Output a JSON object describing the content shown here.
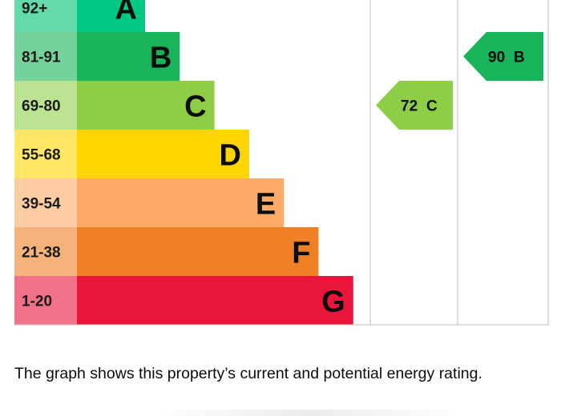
{
  "chart_data": {
    "type": "bar",
    "title": "",
    "xlabel": "",
    "ylabel": "",
    "bands": [
      {
        "range": "92+",
        "letter": "A",
        "band_color": "#00c781",
        "range_color": "#66d9a9"
      },
      {
        "range": "81-91",
        "letter": "B",
        "band_color": "#19b459",
        "range_color": "#75d29b"
      },
      {
        "range": "69-80",
        "letter": "C",
        "band_color": "#8dce46",
        "range_color": "#bbe391"
      },
      {
        "range": "55-68",
        "letter": "D",
        "band_color": "#ffd500",
        "range_color": "#ffe666"
      },
      {
        "range": "39-54",
        "letter": "E",
        "band_color": "#fcaa65",
        "range_color": "#fdcca3"
      },
      {
        "range": "21-38",
        "letter": "F",
        "band_color": "#ef8023",
        "range_color": "#f5b37b"
      },
      {
        "range": "1-20",
        "letter": "G",
        "band_color": "#e9153b",
        "range_color": "#f27389"
      }
    ],
    "current": {
      "score": "72",
      "letter": "C",
      "color": "#8dce46"
    },
    "potential": {
      "score": "90",
      "letter": "B",
      "color": "#19b459"
    }
  },
  "caption": "The graph shows this property’s current and potential energy rating."
}
